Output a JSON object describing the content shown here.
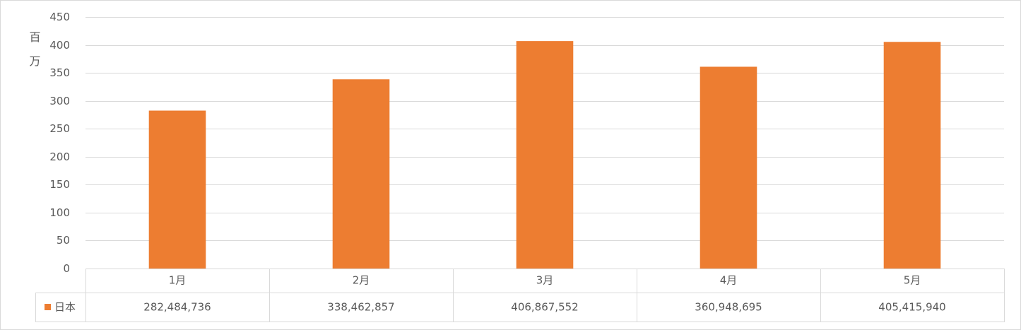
{
  "chart_data": {
    "type": "bar",
    "y_label": "百万",
    "categories": [
      "1月",
      "2月",
      "3月",
      "4月",
      "5月"
    ],
    "series": [
      {
        "name": "日本",
        "color": "#ed7d31",
        "values": [
          282.484736,
          338.462857,
          406.867552,
          360.948695,
          405.41594
        ],
        "value_labels": [
          "282,484,736",
          "338,462,857",
          "406,867,552",
          "360,948,695",
          "405,415,940"
        ]
      }
    ],
    "ylim": [
      0,
      450
    ],
    "yticks": [
      0,
      50,
      100,
      150,
      200,
      250,
      300,
      350,
      400,
      450
    ],
    "grid": true
  }
}
